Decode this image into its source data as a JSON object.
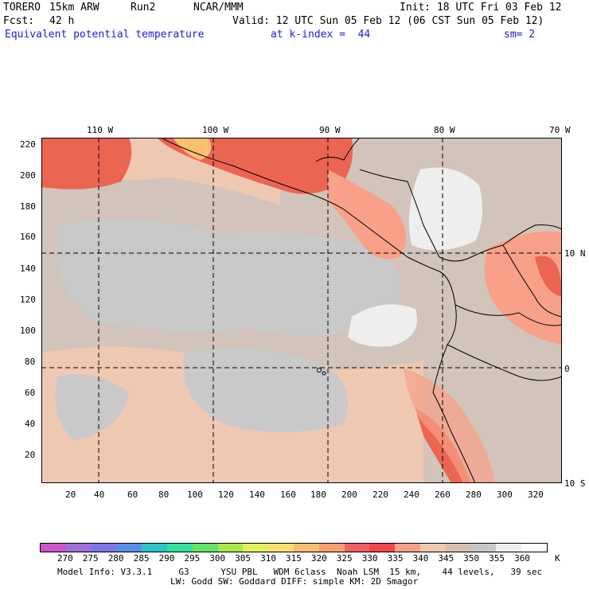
{
  "header": {
    "model": "TORERO",
    "config": "15km ARW",
    "run": "Run2",
    "org": "NCAR/MMM",
    "init": "Init: 18 UTC Fri 03 Feb 12",
    "fcst_label": "Fcst:",
    "fcst_value": "42 h",
    "valid": "Valid: 12 UTC Sun 05 Feb 12 (06 CST Sun 05 Feb 12)",
    "field": "Equivalent potential temperature",
    "level": "at k-index =  44",
    "smoothing": "sm= 2"
  },
  "map": {
    "top_lon_labels": [
      "110 W",
      "100 W",
      "90 W",
      "80 W",
      "70 W"
    ],
    "right_lat_labels": [
      "10 N",
      "0",
      "10 S"
    ],
    "y_grid_labels": [
      "220",
      "200",
      "180",
      "160",
      "140",
      "120",
      "100",
      "80",
      "60",
      "40",
      "20"
    ],
    "x_grid_labels": [
      "20",
      "40",
      "60",
      "80",
      "100",
      "120",
      "140",
      "160",
      "180",
      "200",
      "220",
      "240",
      "260",
      "280",
      "300",
      "320"
    ]
  },
  "colorbar": {
    "unit": "K",
    "labels": [
      "270",
      "275",
      "280",
      "285",
      "290",
      "295",
      "300",
      "305",
      "310",
      "315",
      "320",
      "325",
      "330",
      "335",
      "340",
      "345",
      "350",
      "355",
      "360"
    ],
    "colors": [
      "#cc55cc",
      "#a070d8",
      "#7c74e8",
      "#5a8ee6",
      "#2fc4c4",
      "#33e0a0",
      "#66e066",
      "#a8e84a",
      "#e0f060",
      "#f8e070",
      "#f8c070",
      "#f8a070",
      "#f06060",
      "#f04848",
      "#f8a088",
      "#f0c8b0",
      "#d8c0b0",
      "#c8c8c8",
      "#eeeeee",
      "#ffffff"
    ]
  },
  "footer": {
    "line1": "Model Info: V3.3.1     G3      YSU PBL   WDM 6class  Noah LSM  15 km,    44 levels,   39 sec",
    "line2": "LW: Godd SW: Goddard DIFF: simple KM: 2D Smagor"
  }
}
